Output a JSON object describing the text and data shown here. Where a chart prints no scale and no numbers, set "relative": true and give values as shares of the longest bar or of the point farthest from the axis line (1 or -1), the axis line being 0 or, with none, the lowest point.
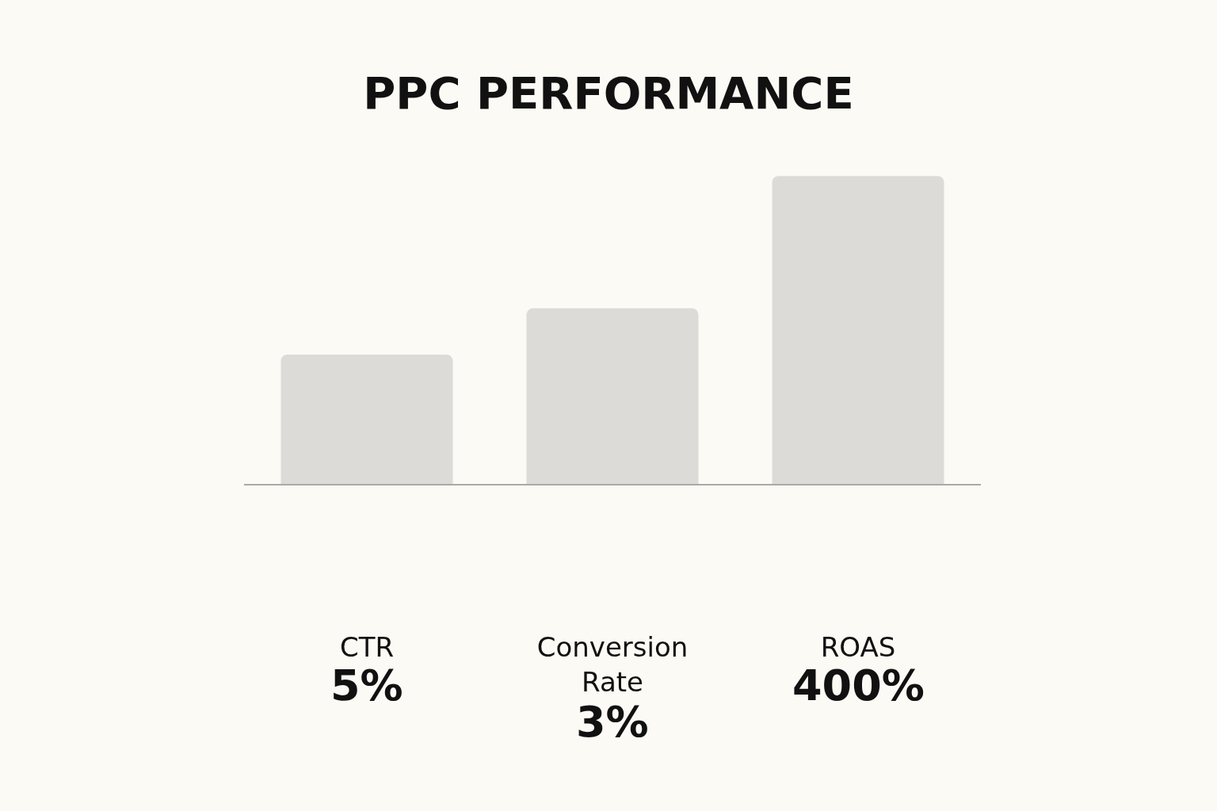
{
  "chart_data": {
    "type": "bar",
    "title": "PPC PERFORMANCE",
    "relative": true,
    "categories": [
      "CTR",
      "Conversion Rate",
      "ROAS"
    ],
    "values": [
      0.42,
      0.57,
      1
    ],
    "annotations": [
      "5%",
      "3%",
      "400%"
    ],
    "color": "#dcdbd8",
    "grid": false,
    "legend": false
  }
}
